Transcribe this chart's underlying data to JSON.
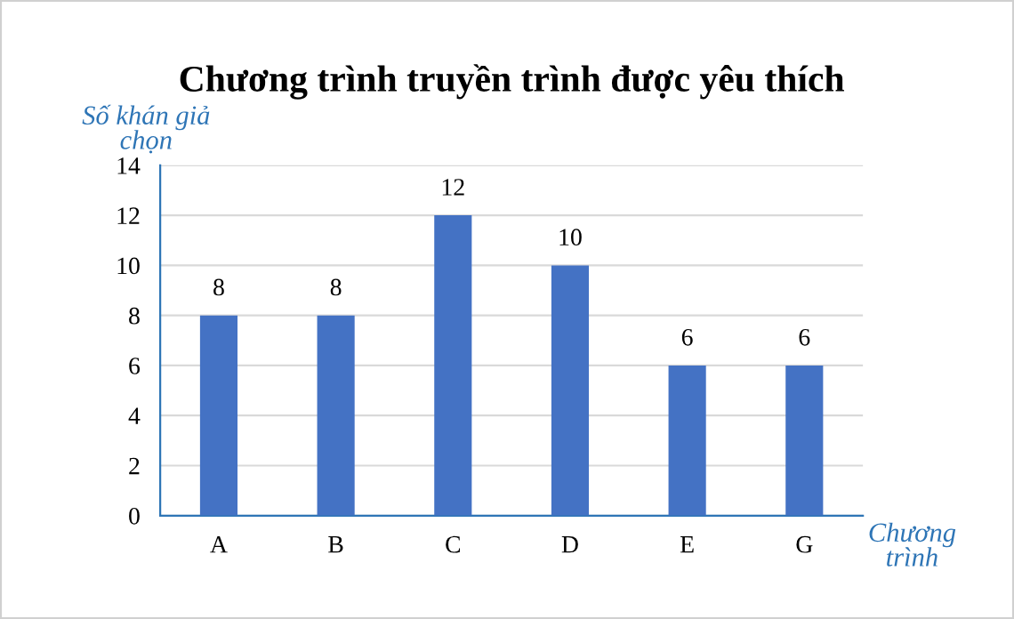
{
  "chart_data": {
    "type": "bar",
    "title": "Chương trình truyền trình được yêu thích",
    "xlabel": "Chương\ntrình",
    "ylabel": "Số khán giả\nchọn",
    "categories": [
      "A",
      "B",
      "C",
      "D",
      "E",
      "G"
    ],
    "values": [
      8,
      8,
      12,
      10,
      6,
      6
    ],
    "color": "#4472c4",
    "ylim": [
      0,
      14
    ],
    "yticks": [
      0,
      2,
      4,
      6,
      8,
      10,
      12,
      14
    ],
    "grid": "y",
    "data_labels": true
  }
}
